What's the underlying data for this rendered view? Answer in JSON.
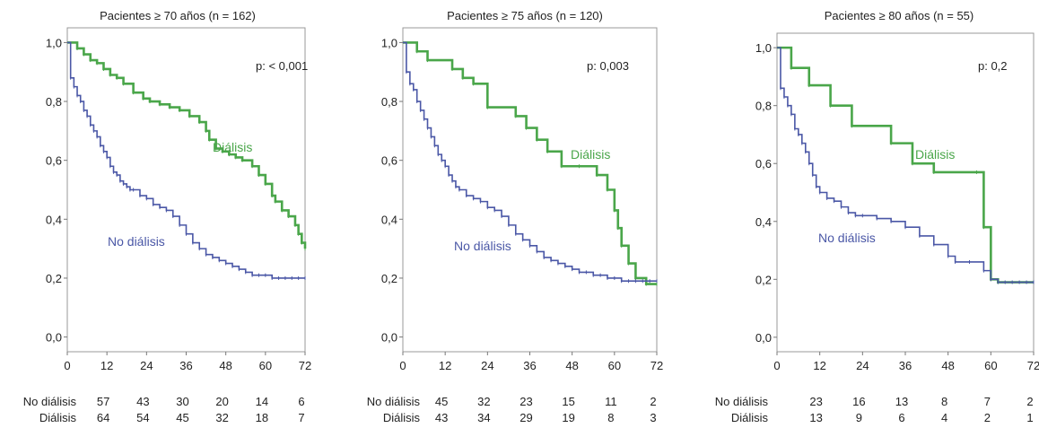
{
  "chart_data": [
    {
      "type": "line",
      "title": "Pacientes ≥ 70 años (n = 162)",
      "p_value": "p: < 0,001",
      "x_ticks": [
        "0",
        "12",
        "24",
        "36",
        "48",
        "60",
        "72"
      ],
      "y_ticks": [
        "0,0",
        "0,2",
        "0,4",
        "0,6",
        "0,8",
        "1,0"
      ],
      "xlim": [
        0,
        72
      ],
      "ylim": [
        -0.05,
        1.05
      ],
      "series": [
        {
          "name": "Diálisis",
          "color": "#4aa64a",
          "x": [
            0,
            3,
            5,
            7,
            9,
            11,
            13,
            15,
            17,
            20,
            23,
            25,
            28,
            31,
            34,
            37,
            40,
            42,
            43,
            45,
            47,
            49,
            51,
            53,
            56,
            58,
            60,
            62,
            63,
            65,
            67,
            69,
            70,
            71,
            72
          ],
          "y": [
            1.0,
            0.98,
            0.96,
            0.94,
            0.93,
            0.91,
            0.89,
            0.88,
            0.86,
            0.83,
            0.81,
            0.8,
            0.79,
            0.78,
            0.77,
            0.75,
            0.73,
            0.7,
            0.67,
            0.64,
            0.63,
            0.62,
            0.61,
            0.6,
            0.58,
            0.55,
            0.52,
            0.48,
            0.46,
            0.43,
            0.41,
            0.38,
            0.35,
            0.32,
            0.3
          ]
        },
        {
          "name": "No diálisis",
          "color": "#4a57a6",
          "x": [
            0,
            1,
            2,
            3,
            4,
            5,
            6,
            7,
            8,
            9,
            10,
            11,
            12,
            13,
            14,
            15,
            16,
            17,
            18,
            19,
            20,
            22,
            24,
            26,
            28,
            30,
            32,
            34,
            36,
            38,
            40,
            42,
            44,
            46,
            48,
            50,
            52,
            54,
            56,
            58,
            60,
            62,
            64,
            66,
            68,
            70,
            72
          ],
          "y": [
            1.0,
            0.88,
            0.85,
            0.82,
            0.8,
            0.77,
            0.75,
            0.72,
            0.7,
            0.68,
            0.65,
            0.63,
            0.61,
            0.58,
            0.56,
            0.55,
            0.53,
            0.52,
            0.51,
            0.5,
            0.5,
            0.48,
            0.47,
            0.45,
            0.44,
            0.43,
            0.41,
            0.38,
            0.35,
            0.32,
            0.3,
            0.28,
            0.27,
            0.26,
            0.25,
            0.24,
            0.23,
            0.22,
            0.21,
            0.21,
            0.21,
            0.2,
            0.2,
            0.2,
            0.2,
            0.2,
            0.2
          ]
        }
      ],
      "risk_table": {
        "rows": [
          {
            "label": "No diálisis",
            "values": [
              "57",
              "43",
              "30",
              "20",
              "14",
              "6"
            ]
          },
          {
            "label": "Diálisis",
            "values": [
              "64",
              "54",
              "45",
              "32",
              "18",
              "7"
            ]
          }
        ]
      }
    },
    {
      "type": "line",
      "title": "Pacientes ≥ 75 años (n = 120)",
      "p_value": "p: 0,003",
      "x_ticks": [
        "0",
        "12",
        "24",
        "36",
        "48",
        "60",
        "72"
      ],
      "y_ticks": [
        "0,0",
        "0,2",
        "0,4",
        "0,6",
        "0,8",
        "1,0"
      ],
      "xlim": [
        0,
        72
      ],
      "ylim": [
        -0.05,
        1.05
      ],
      "series": [
        {
          "name": "Diálisis",
          "color": "#4aa64a",
          "x": [
            0,
            4,
            7,
            14,
            17,
            20,
            24,
            32,
            35,
            38,
            41,
            45,
            50,
            55,
            58,
            60,
            61,
            62,
            64,
            66,
            69,
            72
          ],
          "y": [
            1.0,
            0.97,
            0.94,
            0.91,
            0.88,
            0.86,
            0.78,
            0.75,
            0.71,
            0.67,
            0.63,
            0.58,
            0.58,
            0.55,
            0.5,
            0.43,
            0.37,
            0.31,
            0.25,
            0.2,
            0.18,
            0.18
          ]
        },
        {
          "name": "No diálisis",
          "color": "#4a57a6",
          "x": [
            0,
            1,
            2,
            3,
            4,
            5,
            6,
            7,
            8,
            9,
            10,
            11,
            12,
            13,
            14,
            15,
            16,
            18,
            20,
            22,
            24,
            26,
            28,
            30,
            32,
            34,
            36,
            38,
            40,
            42,
            44,
            46,
            48,
            50,
            52,
            54,
            56,
            58,
            60,
            62,
            64,
            66,
            68,
            70,
            72
          ],
          "y": [
            1.0,
            0.9,
            0.86,
            0.84,
            0.8,
            0.77,
            0.74,
            0.71,
            0.68,
            0.65,
            0.62,
            0.6,
            0.58,
            0.55,
            0.53,
            0.51,
            0.5,
            0.48,
            0.47,
            0.46,
            0.44,
            0.43,
            0.41,
            0.38,
            0.35,
            0.33,
            0.31,
            0.29,
            0.27,
            0.26,
            0.25,
            0.24,
            0.23,
            0.22,
            0.22,
            0.21,
            0.21,
            0.2,
            0.2,
            0.19,
            0.19,
            0.19,
            0.19,
            0.19,
            0.19
          ]
        }
      ],
      "risk_table": {
        "rows": [
          {
            "label": "No diálisis",
            "values": [
              "45",
              "32",
              "23",
              "15",
              "11",
              "2"
            ]
          },
          {
            "label": "Diálisis",
            "values": [
              "43",
              "34",
              "29",
              "19",
              "8",
              "3"
            ]
          }
        ]
      }
    },
    {
      "type": "line",
      "title": "Pacientes ≥ 80 años (n = 55)",
      "p_value": "p: 0,2",
      "x_ticks": [
        "0",
        "12",
        "24",
        "36",
        "48",
        "60",
        "72"
      ],
      "y_ticks": [
        "0,0",
        "0,2",
        "0,4",
        "0,6",
        "0,8",
        "1,0"
      ],
      "xlim": [
        0,
        72
      ],
      "ylim": [
        -0.05,
        1.05
      ],
      "series": [
        {
          "name": "Diálisis",
          "color": "#4aa64a",
          "x": [
            0,
            4,
            9,
            15,
            21,
            32,
            38,
            44,
            56,
            58,
            60,
            62,
            72
          ],
          "y": [
            1.0,
            0.93,
            0.87,
            0.8,
            0.73,
            0.67,
            0.6,
            0.57,
            0.57,
            0.38,
            0.2,
            0.19,
            0.19
          ]
        },
        {
          "name": "No diálisis",
          "color": "#4a57a6",
          "x": [
            0,
            1,
            2,
            3,
            4,
            5,
            6,
            7,
            8,
            9,
            10,
            11,
            12,
            14,
            16,
            18,
            20,
            22,
            24,
            28,
            32,
            36,
            40,
            44,
            48,
            50,
            54,
            58,
            60,
            62,
            64,
            66,
            68,
            70,
            72
          ],
          "y": [
            1.0,
            0.86,
            0.83,
            0.8,
            0.77,
            0.72,
            0.7,
            0.67,
            0.64,
            0.6,
            0.56,
            0.52,
            0.5,
            0.48,
            0.47,
            0.45,
            0.43,
            0.42,
            0.42,
            0.41,
            0.4,
            0.38,
            0.35,
            0.32,
            0.28,
            0.26,
            0.26,
            0.23,
            0.2,
            0.19,
            0.19,
            0.19,
            0.19,
            0.19,
            0.19
          ]
        }
      ],
      "risk_table": {
        "rows": [
          {
            "label": "No diálisis",
            "values": [
              "23",
              "16",
              "13",
              "8",
              "7",
              "2"
            ]
          },
          {
            "label": "Diálisis",
            "values": [
              "13",
              "9",
              "6",
              "4",
              "2",
              "1"
            ]
          }
        ]
      }
    }
  ]
}
